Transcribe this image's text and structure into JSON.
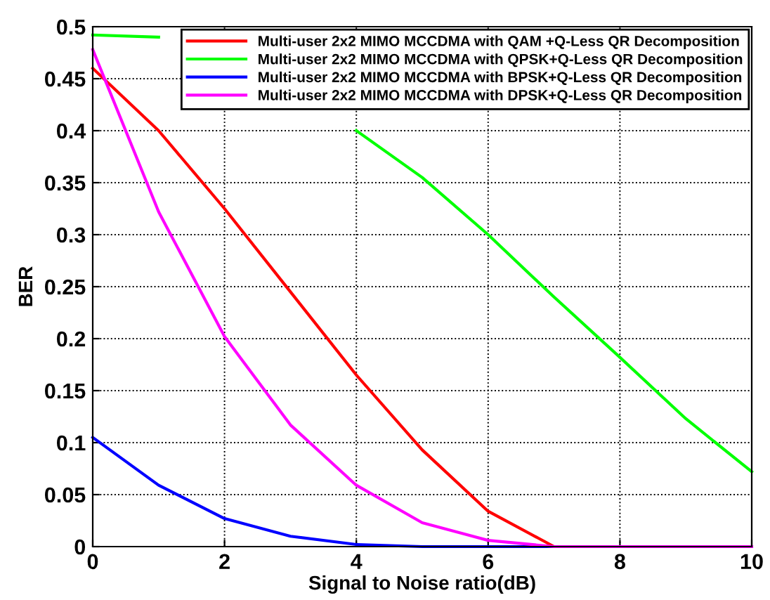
{
  "chart_data": {
    "type": "line",
    "xlabel": "Signal to Noise ratio(dB)",
    "ylabel": "BER",
    "x": [
      0,
      1,
      2,
      3,
      4,
      5,
      6,
      7,
      8,
      9,
      10
    ],
    "series": [
      {
        "name": "Multi-user 2x2 MIMO MCCDMA with QAM +Q-Less QR Decomposition",
        "color": "#ff0000",
        "values": [
          0.46,
          0.4,
          0.325,
          0.245,
          0.165,
          0.093,
          0.034,
          0,
          0,
          null,
          null
        ]
      },
      {
        "name": "Multi-user 2x2 MIMO MCCDMA with QPSK+Q-Less QR Decomposition",
        "color": "#00ff00",
        "values": [
          0.492,
          0.49,
          null,
          null,
          0.4,
          0.355,
          0.3,
          0.24,
          0.182,
          0.123,
          0.072
        ]
      },
      {
        "name": "Multi-user 2x2 MIMO MCCDMA with BPSK+Q-Less QR Decomposition",
        "color": "#0000ff",
        "values": [
          0.105,
          0.059,
          0.027,
          0.01,
          0.002,
          0,
          0,
          0,
          0,
          null,
          null
        ]
      },
      {
        "name": "Multi-user 2x2 MIMO MCCDMA with DPSK+Q-Less QR Decomposition",
        "color": "#ff00ff",
        "values": [
          0.478,
          0.322,
          0.202,
          0.117,
          0.059,
          0.023,
          0.006,
          0,
          0,
          0,
          0
        ]
      }
    ],
    "xlim": [
      0,
      10
    ],
    "xticks": [
      0,
      2,
      4,
      6,
      8,
      10
    ],
    "ylim": [
      0,
      0.5
    ],
    "yticks": [
      0,
      0.05,
      0.1,
      0.15,
      0.2,
      0.25,
      0.3,
      0.35,
      0.4,
      0.45,
      0.5
    ],
    "grid": true,
    "legend": "top right",
    "line_style": "solid",
    "marker": "none"
  }
}
